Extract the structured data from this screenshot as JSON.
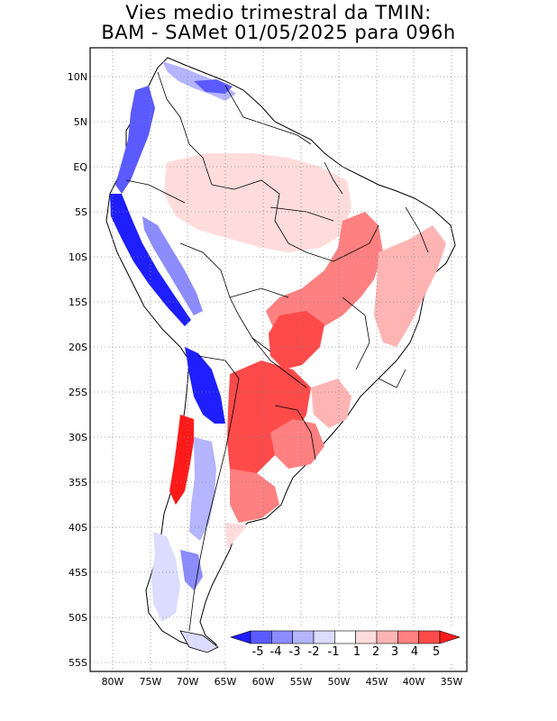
{
  "title": {
    "line1": "Vies medio trimestral da TMIN:",
    "line2": "BAM - SAMet 01/05/2025  para 096h"
  },
  "map": {
    "region": "South America",
    "variable": "TMIN bias",
    "lat_labels": [
      "10N",
      "5N",
      "EQ",
      "5S",
      "10S",
      "15S",
      "20S",
      "25S",
      "30S",
      "35S",
      "40S",
      "45S",
      "50S",
      "55S"
    ],
    "lon_labels": [
      "80W",
      "75W",
      "70W",
      "65W",
      "60W",
      "55W",
      "50W",
      "45W",
      "40W",
      "35W"
    ]
  },
  "colorbar": {
    "labels": [
      "-5",
      "-4",
      "-3",
      "-2",
      "-1",
      "1",
      "2",
      "3",
      "4",
      "5"
    ],
    "colors": [
      "#1e1eff",
      "#5a5aff",
      "#8c8cff",
      "#b4b4ff",
      "#dcdcff",
      "#ffffff",
      "#ffdcdc",
      "#ffb4b4",
      "#ff8080",
      "#ff4a4a",
      "#ff1a1a"
    ]
  }
}
